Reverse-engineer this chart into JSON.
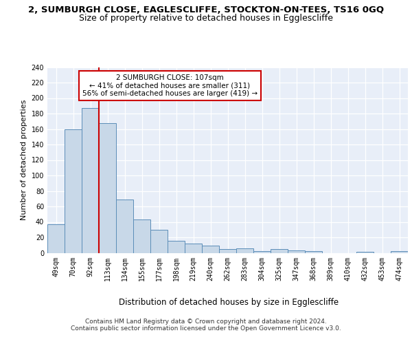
{
  "title": "2, SUMBURGH CLOSE, EAGLESCLIFFE, STOCKTON-ON-TEES, TS16 0GQ",
  "subtitle": "Size of property relative to detached houses in Egglescliffe",
  "xlabel": "Distribution of detached houses by size in Egglescliffe",
  "ylabel": "Number of detached properties",
  "categories": [
    "49sqm",
    "70sqm",
    "92sqm",
    "113sqm",
    "134sqm",
    "155sqm",
    "177sqm",
    "198sqm",
    "219sqm",
    "240sqm",
    "262sqm",
    "283sqm",
    "304sqm",
    "325sqm",
    "347sqm",
    "368sqm",
    "389sqm",
    "410sqm",
    "432sqm",
    "453sqm",
    "474sqm"
  ],
  "values": [
    37,
    160,
    187,
    168,
    69,
    43,
    30,
    16,
    12,
    9,
    5,
    6,
    2,
    5,
    3,
    2,
    0,
    0,
    1,
    0,
    2
  ],
  "bar_color": "#c8d8e8",
  "bar_edge_color": "#5b8db8",
  "bar_edge_width": 0.7,
  "vline_index": 2.5,
  "vline_color": "#cc0000",
  "annotation_text": "2 SUMBURGH CLOSE: 107sqm\n← 41% of detached houses are smaller (311)\n56% of semi-detached houses are larger (419) →",
  "annotation_box_color": "white",
  "annotation_box_edge": "#cc0000",
  "ylim": [
    0,
    240
  ],
  "yticks": [
    0,
    20,
    40,
    60,
    80,
    100,
    120,
    140,
    160,
    180,
    200,
    220,
    240
  ],
  "background_color": "#e8eef8",
  "grid_color": "white",
  "footer": "Contains HM Land Registry data © Crown copyright and database right 2024.\nContains public sector information licensed under the Open Government Licence v3.0.",
  "title_fontsize": 9.5,
  "subtitle_fontsize": 9,
  "xlabel_fontsize": 8.5,
  "ylabel_fontsize": 8,
  "tick_fontsize": 7,
  "footer_fontsize": 6.5,
  "ann_fontsize": 7.5
}
